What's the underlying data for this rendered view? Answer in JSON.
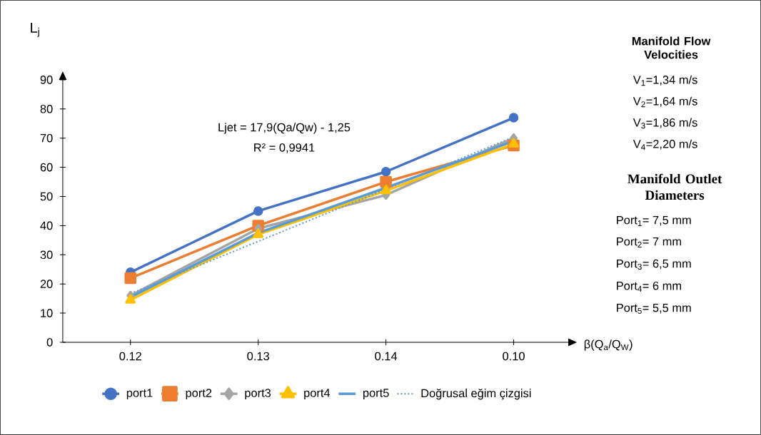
{
  "chart_data": {
    "type": "line",
    "xlabel": "β(Q$_{a}$/Q$_{W}$)",
    "ylabel": "L$_{j}$",
    "categories": [
      "0.12",
      "0.13",
      "0.14",
      "0.10"
    ],
    "ylim": [
      0,
      90
    ],
    "yticks": [
      0,
      10,
      20,
      30,
      40,
      50,
      60,
      70,
      80,
      90
    ],
    "grid": false,
    "legend": "bottom",
    "series": [
      {
        "name": "port1",
        "color": "#4472c4",
        "marker": "circle",
        "values": [
          24,
          45,
          58.5,
          77
        ]
      },
      {
        "name": "port2",
        "color": "#ed7d31",
        "marker": "square",
        "values": [
          22,
          40,
          55,
          67.5
        ]
      },
      {
        "name": "port3",
        "color": "#a5a5a5",
        "marker": "diamond",
        "values": [
          16,
          39,
          50.5,
          70
        ]
      },
      {
        "name": "port4",
        "color": "#ffc000",
        "marker": "triangle",
        "values": [
          14.5,
          37,
          52,
          68
        ]
      },
      {
        "name": "port5",
        "color": "#5b9bd5",
        "marker": "none",
        "values": [
          15.5,
          37.5,
          53,
          69
        ]
      },
      {
        "name": "Doğrusal eğim çizgisi",
        "color": "#5b9bd5",
        "marker": "none",
        "line_style": "dotted",
        "values": [
          16.7,
          34.6,
          52.5,
          70.4
        ]
      }
    ],
    "annotations": [
      "Ljet = 17,9(Qa/Qw) - 1,25",
      "R² = 0,9941",
      "Manifold Flow Velocities",
      "V$_{1}$=1,34 m/s",
      "V$_{2}$=1,64 m/s",
      "V$_{3}$=1,86 m/s",
      "V$_{4}$=2,20 m/s",
      "Manifold Outlet Diameters",
      "Port$_{1}$= 7,5 mm",
      "Port$_{2}$= 7 mm",
      "Port$_{3}$= 6,5 mm",
      "Port$_{4}$= 6 mm",
      "Port$_{5}$= 5,5 mm"
    ]
  }
}
